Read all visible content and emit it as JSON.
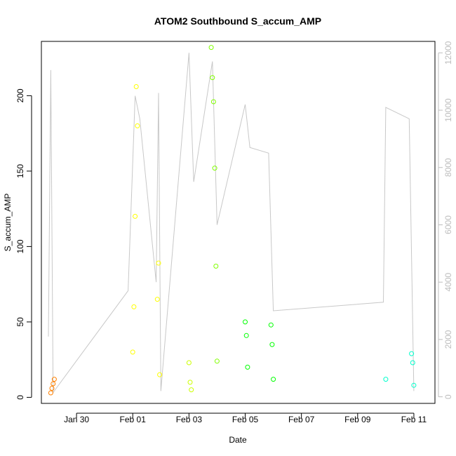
{
  "chart_data": {
    "type": "scatter",
    "title": "ATOM2 Southbound S_accum_AMP",
    "xlabel": "Date",
    "ylabel": "S_accum_AMP",
    "x_range": [
      "2024-01-28T18:00",
      "2024-02-11T18:00"
    ],
    "ylim": [
      -4,
      236
    ],
    "y_ticks": [
      0,
      50,
      100,
      150,
      200
    ],
    "x_ticks": [
      {
        "label": "Jan 30",
        "value": "2024-01-30"
      },
      {
        "label": "Feb 01",
        "value": "2024-02-01"
      },
      {
        "label": "Feb 03",
        "value": "2024-02-03"
      },
      {
        "label": "Feb 05",
        "value": "2024-02-05"
      },
      {
        "label": "Feb 07",
        "value": "2024-02-07"
      },
      {
        "label": "Feb 09",
        "value": "2024-02-09"
      },
      {
        "label": "Feb 11",
        "value": "2024-02-11"
      }
    ],
    "y2_range": [
      -230,
      12400
    ],
    "y2_ticks": [
      0,
      2000,
      4000,
      6000,
      8000,
      10000,
      12000
    ],
    "y2_color": "#bdbdbd",
    "grid": false,
    "legend": "none",
    "series": [
      {
        "color": "#ff8000",
        "points": [
          {
            "x": "2024-01-29T02:00",
            "y": 3
          },
          {
            "x": "2024-01-29T03:00",
            "y": 6
          },
          {
            "x": "2024-01-29T04:00",
            "y": 9
          },
          {
            "x": "2024-01-29T05:00",
            "y": 12
          }
        ]
      },
      {
        "color": "#ffff00",
        "points": [
          {
            "x": "2024-02-01T00:00",
            "y": 30
          },
          {
            "x": "2024-02-01T01:00",
            "y": 60
          },
          {
            "x": "2024-02-01T02:00",
            "y": 120
          },
          {
            "x": "2024-02-01T03:00",
            "y": 206
          },
          {
            "x": "2024-02-01T04:00",
            "y": 180
          },
          {
            "x": "2024-02-01T21:00",
            "y": 65
          },
          {
            "x": "2024-02-01T22:00",
            "y": 89
          },
          {
            "x": "2024-02-01T23:00",
            "y": 15
          }
        ]
      },
      {
        "color": "#ccff00",
        "points": [
          {
            "x": "2024-02-03T00:00",
            "y": 23
          },
          {
            "x": "2024-02-03T01:00",
            "y": 10
          },
          {
            "x": "2024-02-03T02:00",
            "y": 5
          }
        ]
      },
      {
        "color": "#80ff00",
        "points": [
          {
            "x": "2024-02-03T19:00",
            "y": 232
          },
          {
            "x": "2024-02-03T20:00",
            "y": 212
          },
          {
            "x": "2024-02-03T21:00",
            "y": 196
          },
          {
            "x": "2024-02-03T22:00",
            "y": 152
          },
          {
            "x": "2024-02-03T23:00",
            "y": 87
          },
          {
            "x": "2024-02-04T00:00",
            "y": 24
          }
        ]
      },
      {
        "color": "#00ff00",
        "points": [
          {
            "x": "2024-02-05T00:00",
            "y": 50
          },
          {
            "x": "2024-02-05T01:00",
            "y": 41
          },
          {
            "x": "2024-02-05T02:00",
            "y": 20
          },
          {
            "x": "2024-02-05T22:00",
            "y": 48
          },
          {
            "x": "2024-02-05T23:00",
            "y": 35
          },
          {
            "x": "2024-02-06T00:00",
            "y": 12
          }
        ]
      },
      {
        "color": "#00ffcc",
        "points": [
          {
            "x": "2024-02-10T00:00",
            "y": 12
          },
          {
            "x": "2024-02-10T22:00",
            "y": 29
          },
          {
            "x": "2024-02-10T23:00",
            "y": 23
          },
          {
            "x": "2024-02-11T00:00",
            "y": 8
          }
        ]
      }
    ],
    "secondary_series": {
      "color": "#c8c8c8",
      "points": [
        {
          "x": "2024-01-29T00:00",
          "y": 2100
        },
        {
          "x": "2024-01-29T02:00",
          "y": 11400
        },
        {
          "x": "2024-01-29T04:00",
          "y": 150
        },
        {
          "x": "2024-01-31T20:00",
          "y": 3700
        },
        {
          "x": "2024-02-01T02:00",
          "y": 10500
        },
        {
          "x": "2024-02-01T06:00",
          "y": 9700
        },
        {
          "x": "2024-02-01T20:00",
          "y": 4000
        },
        {
          "x": "2024-02-01T22:00",
          "y": 10600
        },
        {
          "x": "2024-02-02T00:00",
          "y": 200
        },
        {
          "x": "2024-02-03T00:00",
          "y": 12000
        },
        {
          "x": "2024-02-03T04:00",
          "y": 7500
        },
        {
          "x": "2024-02-03T20:00",
          "y": 11700
        },
        {
          "x": "2024-02-04T00:00",
          "y": 6000
        },
        {
          "x": "2024-02-05T00:00",
          "y": 10200
        },
        {
          "x": "2024-02-05T04:00",
          "y": 8700
        },
        {
          "x": "2024-02-05T20:00",
          "y": 8500
        },
        {
          "x": "2024-02-06T00:00",
          "y": 3000
        },
        {
          "x": "2024-02-09T22:00",
          "y": 3300
        },
        {
          "x": "2024-02-10T00:00",
          "y": 10100
        },
        {
          "x": "2024-02-10T20:00",
          "y": 9700
        },
        {
          "x": "2024-02-11T00:00",
          "y": 200
        }
      ]
    }
  }
}
